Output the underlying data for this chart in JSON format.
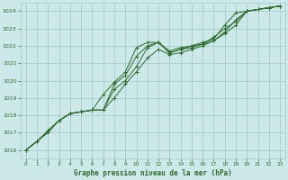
{
  "bg_color": "#cce8e8",
  "grid_color": "#a0c8c8",
  "line_color": "#2d6b2d",
  "title": "Graphe pression niveau de la mer (hPa)",
  "title_color": "#2d6b2d",
  "xlim": [
    -0.5,
    23.5
  ],
  "ylim": [
    1015.5,
    1024.5
  ],
  "yticks": [
    1016,
    1017,
    1018,
    1019,
    1020,
    1021,
    1022,
    1023,
    1024
  ],
  "xticks": [
    0,
    1,
    2,
    3,
    4,
    5,
    6,
    7,
    8,
    9,
    10,
    11,
    12,
    13,
    14,
    15,
    16,
    17,
    18,
    19,
    20,
    21,
    22,
    23
  ],
  "series": [
    [
      1016.0,
      1016.5,
      1017.0,
      1017.7,
      1018.1,
      1018.2,
      1018.3,
      1018.3,
      1019.0,
      1019.8,
      1020.5,
      1021.3,
      1021.8,
      1021.5,
      1021.6,
      1021.8,
      1022.0,
      1022.3,
      1022.8,
      1023.5,
      1024.0,
      1024.1,
      1024.2,
      1024.3
    ],
    [
      1016.0,
      1016.5,
      1017.1,
      1017.7,
      1018.1,
      1018.2,
      1018.3,
      1019.2,
      1019.9,
      1020.5,
      1021.9,
      1022.2,
      1022.2,
      1021.7,
      1021.9,
      1022.0,
      1022.2,
      1022.4,
      1023.2,
      1023.9,
      1024.0,
      1024.1,
      1024.2,
      1024.3
    ],
    [
      1016.0,
      1016.5,
      1017.1,
      1017.7,
      1018.1,
      1018.2,
      1018.3,
      1018.3,
      1019.8,
      1020.3,
      1021.4,
      1022.0,
      1022.2,
      1021.6,
      1021.8,
      1022.0,
      1022.1,
      1022.5,
      1023.0,
      1023.4,
      1024.0,
      1024.1,
      1024.2,
      1024.3
    ],
    [
      1016.0,
      1016.5,
      1017.1,
      1017.7,
      1018.1,
      1018.2,
      1018.3,
      1018.3,
      1019.5,
      1020.0,
      1020.8,
      1021.9,
      1022.2,
      1021.6,
      1021.8,
      1021.9,
      1022.1,
      1022.3,
      1022.7,
      1023.2,
      1024.0,
      1024.1,
      1024.2,
      1024.3
    ]
  ]
}
